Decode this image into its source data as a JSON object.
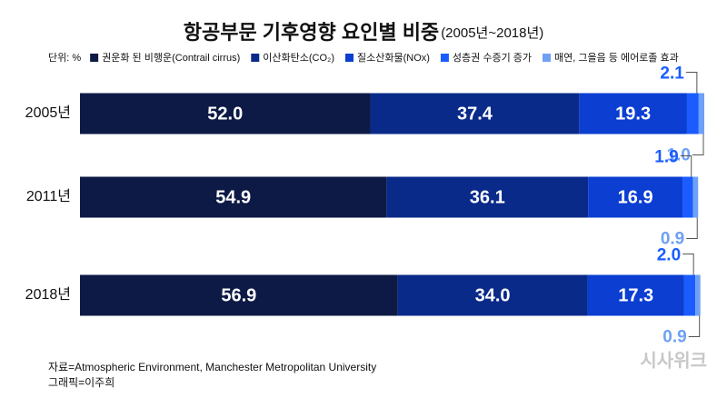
{
  "chart_data": {
    "type": "stacked-bar-horizontal",
    "title": "항공부문 기후영향 요인별 비중",
    "subtitle": "(2005년~2018년)",
    "unit": "단위: %",
    "categories": [
      "2005년",
      "2011년",
      "2018년"
    ],
    "series": [
      {
        "name": "권운화 된 비행운(Contrail cirrus)",
        "color": "#0d1a45",
        "values": [
          52.0,
          54.9,
          56.9
        ],
        "value_labels": [
          "52.0",
          "54.9",
          "56.9"
        ]
      },
      {
        "name": "이산화탄소(CO₂)",
        "color": "#0a2a8a",
        "values": [
          37.4,
          36.1,
          34.0
        ],
        "value_labels": [
          "37.4",
          "36.1",
          "34.0"
        ]
      },
      {
        "name": "질소산화물(NOx)",
        "color": "#0b3ed1",
        "values": [
          19.3,
          16.9,
          17.3
        ],
        "value_labels": [
          "19.3",
          "16.9",
          "17.3"
        ]
      },
      {
        "name": "성층권 수증기 증가",
        "color": "#1a5cff",
        "values": [
          2.1,
          1.9,
          2.0
        ],
        "value_labels": [
          "2.1",
          "1.9",
          "2.0"
        ]
      },
      {
        "name": "매연, 그을음 등 에어로졸 효과",
        "color": "#6ea0f5",
        "values": [
          1.0,
          0.9,
          0.9
        ],
        "value_labels": [
          "1.0",
          "0.9",
          "0.9"
        ]
      }
    ],
    "source": "자료=Atmospheric Environment, Manchester Metropolitan University",
    "credit": "그래픽=이주희",
    "watermark": "시사위크"
  }
}
